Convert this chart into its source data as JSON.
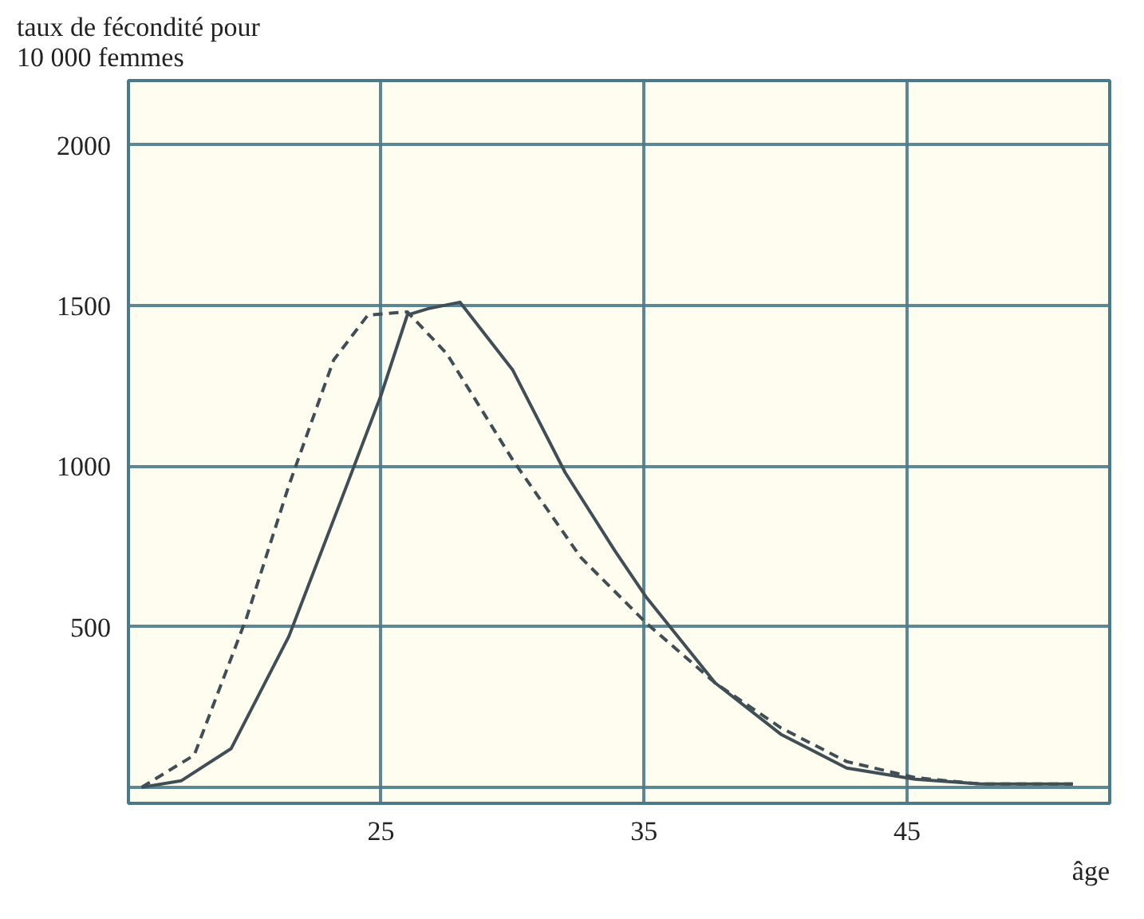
{
  "chart_data": {
    "type": "line",
    "ylabel": "taux de fécondité pour\n10 000 femmes",
    "xlabel": "âge",
    "xlim": [
      15.4,
      52.7
    ],
    "ylim": [
      -50,
      2200
    ],
    "xticks": [
      25,
      35,
      45
    ],
    "yticks": [
      {
        "value": 0,
        "label": null
      },
      500,
      1000,
      1500,
      2000
    ],
    "grid": true,
    "series": [
      {
        "color": "#3f4f55",
        "line_style": "solid",
        "x": [
          15.9,
          17.4,
          19.3,
          21.5,
          23.7,
          25,
          26,
          26.8,
          28,
          30,
          32,
          33.9,
          35.1,
          37.7,
          40.2,
          42.7,
          45.3,
          47.8,
          51.3
        ],
        "values": [
          0,
          20,
          120,
          470,
          940,
          1220,
          1470,
          1490,
          1510,
          1300,
          980,
          735,
          590,
          325,
          165,
          60,
          25,
          10,
          10
        ]
      },
      {
        "color": "#3f4f55",
        "line_style": "dashed",
        "x": [
          15.9,
          17.9,
          19.9,
          21.5,
          23.2,
          24.5,
          26,
          27.5,
          30,
          32.6,
          35.1,
          37.7,
          40.2,
          42.7,
          45.3,
          47.8,
          51.3
        ],
        "values": [
          0,
          100,
          530,
          940,
          1330,
          1470,
          1480,
          1350,
          1020,
          715,
          510,
          325,
          185,
          80,
          30,
          10,
          10
        ]
      }
    ]
  }
}
